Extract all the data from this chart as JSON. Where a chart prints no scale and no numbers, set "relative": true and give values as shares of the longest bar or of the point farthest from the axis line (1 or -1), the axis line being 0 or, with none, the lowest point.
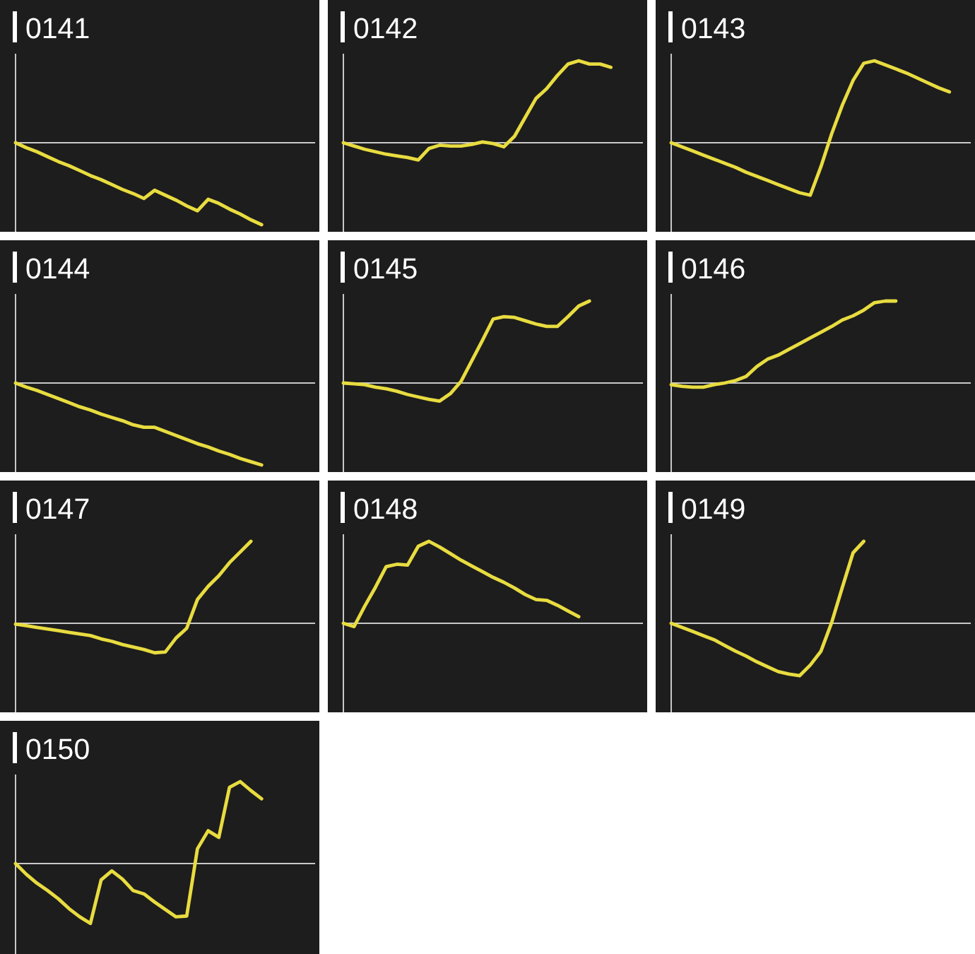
{
  "chart_data": [
    {
      "type": "line",
      "title": "0141",
      "relative": true,
      "color": "#e8dc40",
      "categories": [
        null,
        null,
        null,
        null,
        null,
        null,
        null,
        null,
        null,
        null,
        null,
        null,
        null,
        null,
        null,
        null,
        null,
        null,
        null,
        null,
        null,
        null,
        null,
        null,
        null,
        null,
        null,
        null,
        null
      ],
      "values": [
        0,
        -0.06,
        -0.11,
        -0.17,
        -0.23,
        -0.28,
        -0.34,
        -0.4,
        -0.45,
        -0.51,
        -0.57,
        -0.62,
        -0.68,
        -0.58,
        -0.64,
        -0.7,
        -0.77,
        -0.83,
        -0.69,
        -0.74,
        -0.81,
        -0.87,
        -0.94,
        -1.0,
        null,
        null,
        null,
        null,
        null
      ]
    },
    {
      "type": "line",
      "title": "0142",
      "relative": true,
      "color": "#e8dc40",
      "categories": [
        null,
        null,
        null,
        null,
        null,
        null,
        null,
        null,
        null,
        null,
        null,
        null,
        null,
        null,
        null,
        null,
        null,
        null,
        null,
        null,
        null,
        null,
        null,
        null,
        null,
        null,
        null,
        null,
        null
      ],
      "values": [
        0,
        -0.04,
        -0.08,
        -0.11,
        -0.14,
        -0.16,
        -0.18,
        -0.21,
        -0.07,
        -0.03,
        -0.04,
        -0.04,
        -0.02,
        0.01,
        -0.01,
        -0.05,
        0.08,
        0.31,
        0.54,
        0.66,
        0.82,
        0.96,
        1.0,
        0.96,
        0.96,
        0.92,
        null,
        null,
        null
      ]
    },
    {
      "type": "line",
      "title": "0143",
      "relative": true,
      "color": "#e8dc40",
      "categories": [
        null,
        null,
        null,
        null,
        null,
        null,
        null,
        null,
        null,
        null,
        null,
        null,
        null,
        null,
        null,
        null,
        null,
        null,
        null,
        null,
        null,
        null,
        null,
        null,
        null,
        null,
        null,
        null,
        null
      ],
      "values": [
        0,
        -0.05,
        -0.1,
        -0.15,
        -0.2,
        -0.25,
        -0.3,
        -0.36,
        -0.41,
        -0.46,
        -0.51,
        -0.56,
        -0.61,
        -0.64,
        -0.29,
        0.11,
        0.46,
        0.76,
        0.97,
        1.0,
        0.95,
        0.9,
        0.85,
        0.79,
        0.73,
        0.67,
        0.62,
        null,
        null
      ]
    },
    {
      "type": "line",
      "title": "0144",
      "relative": true,
      "color": "#e8dc40",
      "categories": [
        null,
        null,
        null,
        null,
        null,
        null,
        null,
        null,
        null,
        null,
        null,
        null,
        null,
        null,
        null,
        null,
        null,
        null,
        null,
        null,
        null,
        null,
        null,
        null,
        null,
        null,
        null,
        null,
        null
      ],
      "values": [
        0,
        -0.05,
        -0.09,
        -0.14,
        -0.19,
        -0.24,
        -0.29,
        -0.33,
        -0.38,
        -0.42,
        -0.46,
        -0.51,
        -0.54,
        -0.54,
        -0.59,
        -0.64,
        -0.69,
        -0.74,
        -0.78,
        -0.83,
        -0.87,
        -0.92,
        -0.96,
        -1.0,
        null,
        null,
        null,
        null,
        null
      ]
    },
    {
      "type": "line",
      "title": "0145",
      "relative": true,
      "color": "#e8dc40",
      "categories": [
        null,
        null,
        null,
        null,
        null,
        null,
        null,
        null,
        null,
        null,
        null,
        null,
        null,
        null,
        null,
        null,
        null,
        null,
        null,
        null,
        null,
        null,
        null,
        null,
        null,
        null,
        null,
        null,
        null
      ],
      "values": [
        0,
        -0.01,
        -0.02,
        -0.05,
        -0.07,
        -0.1,
        -0.14,
        -0.17,
        -0.2,
        -0.22,
        -0.13,
        0.02,
        0.27,
        0.52,
        0.78,
        0.81,
        0.8,
        0.76,
        0.72,
        0.69,
        0.69,
        0.81,
        0.94,
        1.0,
        null,
        null,
        null,
        null,
        null
      ]
    },
    {
      "type": "line",
      "title": "0146",
      "relative": true,
      "color": "#e8dc40",
      "categories": [
        null,
        null,
        null,
        null,
        null,
        null,
        null,
        null,
        null,
        null,
        null,
        null,
        null,
        null,
        null,
        null,
        null,
        null,
        null,
        null,
        null,
        null,
        null,
        null,
        null,
        null,
        null,
        null,
        null
      ],
      "values": [
        -0.02,
        -0.04,
        -0.05,
        -0.05,
        -0.02,
        0.0,
        0.03,
        0.08,
        0.2,
        0.29,
        0.34,
        0.41,
        0.48,
        0.55,
        0.62,
        0.69,
        0.77,
        0.82,
        0.89,
        0.98,
        1.0,
        1.0,
        null,
        null,
        null,
        null,
        null,
        null,
        null
      ]
    },
    {
      "type": "line",
      "title": "0147",
      "relative": true,
      "color": "#e8dc40",
      "categories": [
        null,
        null,
        null,
        null,
        null,
        null,
        null,
        null,
        null,
        null,
        null,
        null,
        null,
        null,
        null,
        null,
        null,
        null,
        null,
        null,
        null,
        null,
        null,
        null,
        null,
        null,
        null,
        null,
        null
      ],
      "values": [
        -0.01,
        -0.03,
        -0.05,
        -0.07,
        -0.09,
        -0.11,
        -0.13,
        -0.15,
        -0.19,
        -0.22,
        -0.26,
        -0.29,
        -0.32,
        -0.36,
        -0.35,
        -0.18,
        -0.06,
        0.29,
        0.45,
        0.58,
        0.74,
        0.87,
        1.0,
        null,
        null,
        null,
        null,
        null,
        null
      ]
    },
    {
      "type": "line",
      "title": "0148",
      "relative": true,
      "color": "#e8dc40",
      "categories": [
        null,
        null,
        null,
        null,
        null,
        null,
        null,
        null,
        null,
        null,
        null,
        null,
        null,
        null,
        null,
        null,
        null,
        null,
        null,
        null,
        null,
        null,
        null,
        null,
        null,
        null,
        null,
        null,
        null
      ],
      "values": [
        0,
        -0.04,
        0.21,
        0.44,
        0.69,
        0.72,
        0.71,
        0.94,
        1.0,
        0.93,
        0.85,
        0.77,
        0.7,
        0.63,
        0.56,
        0.5,
        0.43,
        0.35,
        0.29,
        0.28,
        0.22,
        0.15,
        0.08,
        null,
        null,
        null,
        null,
        null,
        null
      ]
    },
    {
      "type": "line",
      "title": "0149",
      "relative": true,
      "color": "#e8dc40",
      "categories": [
        null,
        null,
        null,
        null,
        null,
        null,
        null,
        null,
        null,
        null,
        null,
        null,
        null,
        null,
        null,
        null,
        null,
        null,
        null,
        null,
        null,
        null,
        null,
        null,
        null,
        null,
        null,
        null,
        null
      ],
      "values": [
        0,
        -0.05,
        -0.1,
        -0.15,
        -0.2,
        -0.27,
        -0.34,
        -0.4,
        -0.47,
        -0.53,
        -0.59,
        -0.62,
        -0.64,
        -0.51,
        -0.34,
        0.01,
        0.44,
        0.86,
        1.0,
        null,
        null,
        null,
        null,
        null,
        null,
        null,
        null,
        null,
        null
      ]
    },
    {
      "type": "line",
      "title": "0150",
      "relative": true,
      "color": "#e8dc40",
      "categories": [
        null,
        null,
        null,
        null,
        null,
        null,
        null,
        null,
        null,
        null,
        null,
        null,
        null,
        null,
        null,
        null,
        null,
        null,
        null,
        null,
        null,
        null,
        null,
        null,
        null,
        null,
        null,
        null,
        null
      ],
      "values": [
        0,
        -0.13,
        -0.24,
        -0.33,
        -0.43,
        -0.55,
        -0.65,
        -0.73,
        -0.2,
        -0.09,
        -0.19,
        -0.33,
        -0.37,
        -0.47,
        -0.56,
        -0.65,
        -0.64,
        0.18,
        0.4,
        0.32,
        0.93,
        1.0,
        0.89,
        0.79,
        null,
        null,
        null,
        null,
        null
      ]
    }
  ]
}
